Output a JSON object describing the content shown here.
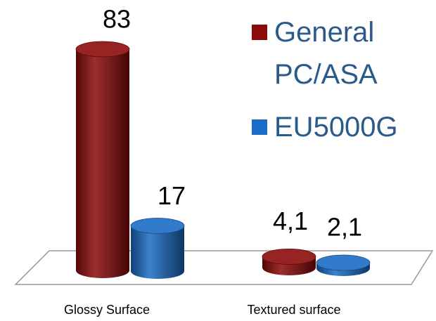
{
  "chart_data": {
    "type": "bar3d",
    "categories": [
      "Glossy Surface",
      "Textured surface"
    ],
    "series": [
      {
        "name": "General PC/ASA",
        "color": "#8b0a0a",
        "values": [
          83,
          4.1
        ],
        "value_labels": [
          "83",
          "4,1"
        ]
      },
      {
        "name": "EU5000G",
        "color": "#1a6cc4",
        "values": [
          17,
          2.1
        ],
        "value_labels": [
          "17",
          "2,1"
        ]
      }
    ],
    "legend": "right"
  }
}
